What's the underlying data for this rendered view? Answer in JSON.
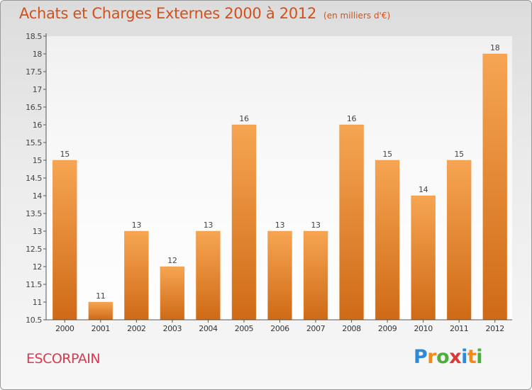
{
  "title": "Achats et Charges Externes 2000 à 2012",
  "unit_note": "(en milliers d'€)",
  "commune": "ESCORPAIN",
  "brand": {
    "letters": [
      "P",
      "r",
      "o",
      "x",
      "i",
      "t",
      "i"
    ],
    "colors": [
      "#2e8ad8",
      "#f08a1c",
      "#4caf3a",
      "#d83a3a",
      "#2e8ad8",
      "#f08a1c",
      "#4caf3a"
    ]
  },
  "colors": {
    "bar_top": "#f6a552",
    "bar_bottom": "#cf6a16",
    "title": "#d2511a",
    "commune": "#d83a52"
  },
  "chart_data": {
    "type": "bar",
    "title": "Achats et Charges Externes 2000 à 2012",
    "subtitle": "(en milliers d'€)",
    "categories": [
      "2000",
      "2001",
      "2002",
      "2003",
      "2004",
      "2005",
      "2006",
      "2007",
      "2008",
      "2009",
      "2010",
      "2011",
      "2012"
    ],
    "values": [
      15,
      11,
      13,
      12,
      13,
      16,
      13,
      13,
      16,
      15,
      14,
      15,
      18
    ],
    "data_labels": [
      "15",
      "11",
      "13",
      "12",
      "13",
      "16",
      "13",
      "13",
      "16",
      "15",
      "14",
      "15",
      "18"
    ],
    "y_ticks": [
      "10.5",
      "11",
      "11.5",
      "12",
      "12.5",
      "13",
      "13.5",
      "14",
      "14.5",
      "15",
      "15.5",
      "16",
      "16.5",
      "17",
      "17.5",
      "18",
      "18.5"
    ],
    "ylim": [
      10.5,
      18.5
    ],
    "xlabel": "",
    "ylabel": "",
    "grid": false,
    "legend": "none"
  }
}
